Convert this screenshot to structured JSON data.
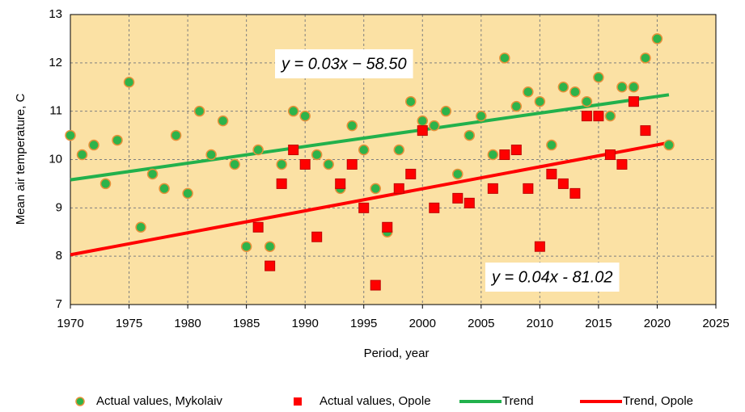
{
  "chart_data": {
    "type": "scatter",
    "xlabel": "Period, year",
    "ylabel": "Mean air temperature, C",
    "xlim": [
      1970,
      2025
    ],
    "xticks": [
      1970,
      1975,
      1980,
      1985,
      1990,
      1995,
      2000,
      2005,
      2010,
      2015,
      2020,
      2025
    ],
    "ylim": [
      7,
      13
    ],
    "yticks": [
      7,
      8,
      9,
      10,
      11,
      12,
      13
    ],
    "grid": true,
    "legend": "bottom",
    "annotations": [
      "y = 0.03x − 58.50",
      "y = 0.04x - 81.02"
    ],
    "series": [
      {
        "name": "Actual values, Mykolaiv",
        "type": "scatter",
        "marker": "circle",
        "color": "#2db34a",
        "x": [
          1970,
          1971,
          1972,
          1973,
          1974,
          1975,
          1976,
          1977,
          1978,
          1979,
          1980,
          1981,
          1982,
          1983,
          1984,
          1985,
          1986,
          1987,
          1988,
          1989,
          1990,
          1991,
          1992,
          1993,
          1994,
          1995,
          1996,
          1997,
          1998,
          1999,
          2000,
          2001,
          2002,
          2003,
          2004,
          2005,
          2006,
          2007,
          2008,
          2009,
          2010,
          2011,
          2012,
          2013,
          2014,
          2015,
          2016,
          2017,
          2018,
          2019,
          2020,
          2021
        ],
        "values": [
          10.5,
          10.1,
          10.3,
          9.5,
          10.4,
          11.6,
          8.6,
          9.7,
          9.4,
          10.5,
          9.3,
          11.0,
          10.1,
          10.8,
          9.9,
          8.2,
          10.2,
          8.2,
          9.9,
          11.0,
          10.9,
          10.1,
          9.9,
          9.4,
          10.7,
          10.2,
          9.4,
          8.5,
          10.2,
          11.2,
          10.8,
          10.7,
          11.0,
          9.7,
          10.5,
          10.9,
          10.1,
          12.1,
          11.1,
          11.4,
          11.2,
          10.3,
          11.5,
          11.4,
          11.2,
          11.7,
          10.9,
          11.5,
          11.5,
          12.1,
          12.5,
          10.3
        ]
      },
      {
        "name": "Actual values, Opole",
        "type": "scatter",
        "marker": "square",
        "color": "#ff0000",
        "x": [
          1986,
          1987,
          1988,
          1989,
          1990,
          1991,
          1993,
          1994,
          1995,
          1996,
          1997,
          1998,
          1999,
          2000,
          2001,
          2003,
          2004,
          2006,
          2007,
          2008,
          2009,
          2010,
          2011,
          2012,
          2013,
          2014,
          2015,
          2016,
          2017,
          2018,
          2019
        ],
        "values": [
          8.6,
          7.8,
          9.5,
          10.2,
          9.9,
          8.4,
          9.5,
          9.9,
          9.0,
          7.4,
          8.6,
          9.4,
          9.7,
          10.6,
          9.0,
          9.2,
          9.1,
          9.4,
          10.1,
          10.2,
          9.4,
          8.2,
          9.7,
          9.5,
          9.3,
          10.9,
          10.9,
          10.1,
          9.9,
          11.2,
          10.6
        ]
      },
      {
        "name": "Trend",
        "type": "line",
        "color": "#22b14c",
        "x": [
          1970,
          2021
        ],
        "values": [
          9.58,
          11.34
        ]
      },
      {
        "name": "Trend, Opole",
        "type": "line",
        "color": "#ff0000",
        "x": [
          1970,
          2021
        ],
        "values": [
          8.03,
          10.35
        ]
      }
    ]
  }
}
